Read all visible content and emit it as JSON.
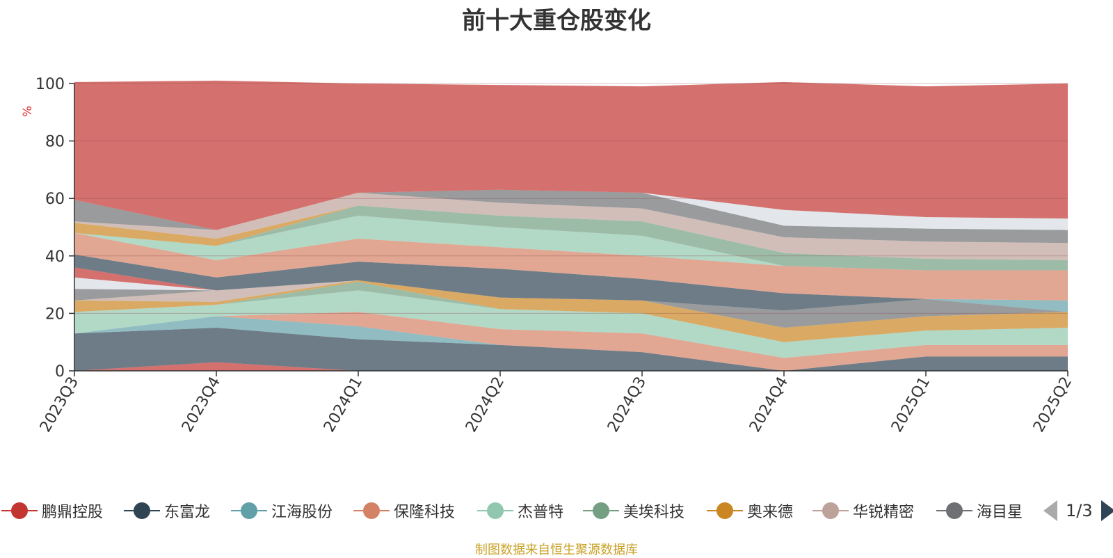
{
  "chart_data": {
    "type": "area",
    "stacked": true,
    "title": "前十大重仓股变化",
    "ylabel": "%",
    "ylim": [
      0,
      100
    ],
    "yticks": [
      0,
      20,
      40,
      60,
      80,
      100
    ],
    "categories": [
      "2023Q3",
      "2023Q4",
      "2024Q1",
      "2024Q2",
      "2024Q3",
      "2024Q4",
      "2025Q1",
      "2025Q2"
    ],
    "grid": true,
    "legend_position": "bottom",
    "legend_page": "1/3",
    "series": [
      {
        "name": "",
        "color": "#d3d3d3",
        "values": [
          0,
          0,
          0,
          0,
          0,
          0,
          0,
          0
        ]
      },
      {
        "name": "鹏鼎控股",
        "color": "#c23531",
        "values": [
          0,
          3,
          0,
          0,
          0,
          0,
          0,
          0
        ]
      },
      {
        "name": "东富龙",
        "color": "#2f4554",
        "values": [
          13,
          12,
          11,
          9,
          6.5,
          0,
          5,
          5
        ]
      },
      {
        "name": "江海股份",
        "color": "#61a0a8",
        "values": [
          0,
          4,
          4.5,
          0,
          0,
          0,
          0,
          0
        ]
      },
      {
        "name": "保隆科技",
        "color": "#d48265",
        "values": [
          0,
          0,
          5,
          5.5,
          6.5,
          4.5,
          4,
          4
        ]
      },
      {
        "name": "杰普特",
        "color": "#91c7ae",
        "values": [
          7.5,
          4,
          7.5,
          7,
          7,
          5.5,
          5,
          6
        ]
      },
      {
        "name": "美埃科技",
        "color": "#749f83",
        "values": [
          0,
          0,
          3,
          0,
          0,
          0,
          0,
          0
        ]
      },
      {
        "name": "奥来德",
        "color": "#ca8622",
        "values": [
          4,
          1,
          0.5,
          4,
          4.5,
          5,
          5,
          5.5
        ]
      },
      {
        "name": "华锐精密",
        "color": "#bda29a",
        "values": [
          0,
          4,
          0,
          0,
          0,
          0,
          0,
          0
        ]
      },
      {
        "name": "海目星",
        "color": "#6e7074",
        "values": [
          4,
          0,
          0,
          0,
          0,
          6,
          6,
          0
        ]
      },
      {
        "name": "",
        "color": "#d7dce2",
        "values": [
          4,
          0,
          0,
          0,
          0,
          0,
          0,
          0
        ]
      },
      {
        "name": "",
        "color": "#c23531",
        "values": [
          3.5,
          0,
          0,
          0,
          0,
          0,
          0,
          0
        ]
      },
      {
        "name": "",
        "color": "#2f4554",
        "values": [
          4.5,
          4.5,
          6.5,
          10,
          7.5,
          6,
          0,
          0
        ]
      },
      {
        "name": "",
        "color": "#61a0a8",
        "values": [
          0,
          0,
          0,
          0,
          0,
          0,
          0,
          4
        ]
      },
      {
        "name": "",
        "color": "#d48265",
        "values": [
          7.5,
          6,
          8,
          7.5,
          8,
          9.5,
          10,
          10.5
        ]
      },
      {
        "name": "",
        "color": "#91c7ae",
        "values": [
          0,
          5,
          8,
          7,
          7,
          0,
          0,
          0
        ]
      },
      {
        "name": "",
        "color": "#749f83",
        "values": [
          0,
          0,
          3.5,
          4,
          5,
          4.5,
          4,
          3.5
        ]
      },
      {
        "name": "",
        "color": "#ca8622",
        "values": [
          3.5,
          2.5,
          0,
          0,
          0,
          0,
          0,
          0
        ]
      },
      {
        "name": "",
        "color": "#bda29a",
        "values": [
          0.5,
          3,
          4.5,
          4.5,
          4.5,
          5.5,
          6,
          6
        ]
      },
      {
        "name": "",
        "color": "#6e7074",
        "values": [
          7.5,
          0,
          0,
          4.5,
          5.5,
          4,
          4.5,
          4.5
        ]
      },
      {
        "name": "",
        "color": "#d7dce2",
        "values": [
          0,
          0,
          0,
          0,
          0,
          5.5,
          4,
          4
        ]
      },
      {
        "name": "",
        "color": "#c23531",
        "values": [
          41,
          52,
          38,
          36.5,
          37,
          44.5,
          45.5,
          47
        ]
      }
    ]
  },
  "legend_items": [
    {
      "label": "鹏鼎控股",
      "color": "#c23531"
    },
    {
      "label": "东富龙",
      "color": "#2f4554"
    },
    {
      "label": "江海股份",
      "color": "#61a0a8"
    },
    {
      "label": "保隆科技",
      "color": "#d48265"
    },
    {
      "label": "杰普特",
      "color": "#91c7ae"
    },
    {
      "label": "美埃科技",
      "color": "#749f83"
    },
    {
      "label": "奥来德",
      "color": "#ca8622"
    },
    {
      "label": "华锐精密",
      "color": "#bda29a"
    },
    {
      "label": "海目星",
      "color": "#6e7074"
    }
  ],
  "pager": {
    "text": "1/3"
  },
  "source_note": "制图数据来自恒生聚源数据库"
}
